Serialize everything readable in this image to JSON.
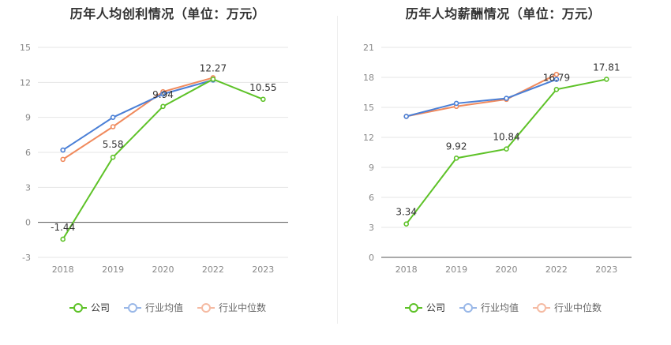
{
  "chart_data": [
    {
      "type": "line",
      "title": "历年人均创利情况（单位：万元）",
      "categories": [
        "2018",
        "2019",
        "2020",
        "2022",
        "2023"
      ],
      "ylim": [
        -3,
        15
      ],
      "yticks": [
        -3,
        0,
        3,
        6,
        9,
        12,
        15
      ],
      "grid": true,
      "legend_position": "bottom",
      "series": [
        {
          "name": "公司",
          "color": "#5ec228",
          "values": [
            -1.44,
            5.58,
            9.94,
            12.27,
            10.55
          ],
          "labels": [
            "-1.44",
            "5.58",
            "9.94",
            "12.27",
            "10.55"
          ]
        },
        {
          "name": "行业均值",
          "color": "#4a7fd6",
          "values": [
            6.2,
            9.0,
            11.0,
            12.2,
            null
          ]
        },
        {
          "name": "行业中位数",
          "color": "#f08a5d",
          "values": [
            5.4,
            8.2,
            11.2,
            12.4,
            null
          ]
        }
      ]
    },
    {
      "type": "line",
      "title": "历年人均薪酬情况（单位：万元）",
      "categories": [
        "2018",
        "2019",
        "2020",
        "2022",
        "2023"
      ],
      "ylim": [
        0,
        21
      ],
      "yticks": [
        0,
        3,
        6,
        9,
        12,
        15,
        18,
        21
      ],
      "grid": true,
      "legend_position": "bottom",
      "series": [
        {
          "name": "公司",
          "color": "#5ec228",
          "values": [
            3.34,
            9.92,
            10.84,
            16.79,
            17.81
          ],
          "labels": [
            "3.34",
            "9.92",
            "10.84",
            "16.79",
            "17.81"
          ]
        },
        {
          "name": "行业均值",
          "color": "#4a7fd6",
          "values": [
            14.1,
            15.4,
            15.9,
            17.8,
            null
          ]
        },
        {
          "name": "行业中位数",
          "color": "#f08a5d",
          "values": [
            14.1,
            15.1,
            15.8,
            18.3,
            null
          ]
        }
      ]
    }
  ],
  "legend": {
    "company": "公司",
    "industry_avg": "行业均值",
    "industry_median": "行业中位数"
  }
}
